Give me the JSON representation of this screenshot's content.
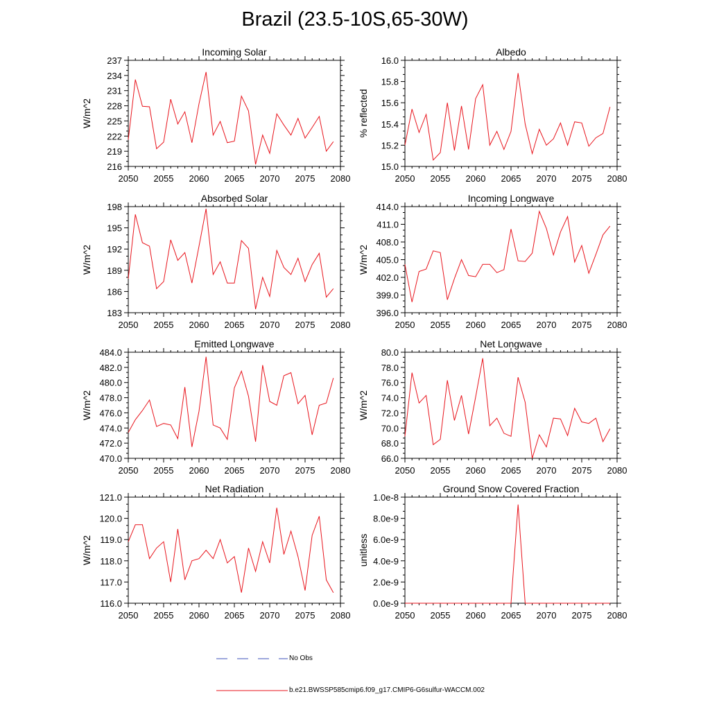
{
  "title": "Brazil (23.5-10S,65-30W)",
  "legend": {
    "obs_label": "No Obs",
    "obs_color": "#3b4fb8",
    "model_label": "b.e21.BWSSP585cmip6.f09_g17.CMIP6-G6sulfur-WACCM.002",
    "model_color": "#e8131b"
  },
  "chart_data": [
    {
      "type": "line",
      "title": "Incoming Solar",
      "ylabel": "W/m^2",
      "xlim": [
        2050,
        2080
      ],
      "ylim": [
        216,
        237
      ],
      "yticks": [
        "216",
        "219",
        "222",
        "225",
        "228",
        "231",
        "234",
        "237"
      ],
      "xticks": [
        "2050",
        "2055",
        "2060",
        "2065",
        "2070",
        "2075",
        "2080"
      ],
      "x": [
        2050,
        2051,
        2052,
        2053,
        2054,
        2055,
        2056,
        2057,
        2058,
        2059,
        2060,
        2061,
        2062,
        2063,
        2064,
        2065,
        2066,
        2067,
        2068,
        2069,
        2070,
        2071,
        2072,
        2073,
        2074,
        2075,
        2076,
        2077,
        2078,
        2079
      ],
      "series": [
        {
          "values": [
            221.3,
            233.2,
            227.9,
            227.8,
            219.5,
            220.8,
            229.3,
            224.4,
            226.8,
            220.7,
            228.4,
            234.7,
            222.2,
            224.9,
            220.7,
            221.0,
            229.9,
            227.0,
            216.4,
            222.2,
            218.6,
            226.4,
            224.2,
            222.2,
            225.5,
            221.6,
            223.7,
            225.9,
            219.0,
            220.9
          ]
        }
      ]
    },
    {
      "type": "line",
      "title": "Albedo",
      "ylabel": "% reflected",
      "xlim": [
        2050,
        2080
      ],
      "ylim": [
        15.0,
        16.0
      ],
      "yticks": [
        "15.0",
        "15.2",
        "15.4",
        "15.6",
        "15.8",
        "16.0"
      ],
      "xticks": [
        "2050",
        "2055",
        "2060",
        "2065",
        "2070",
        "2075",
        "2080"
      ],
      "x": [
        2050,
        2051,
        2052,
        2053,
        2054,
        2055,
        2056,
        2057,
        2058,
        2059,
        2060,
        2061,
        2062,
        2063,
        2064,
        2065,
        2066,
        2067,
        2068,
        2069,
        2070,
        2071,
        2072,
        2073,
        2074,
        2075,
        2076,
        2077,
        2078,
        2079
      ],
      "series": [
        {
          "values": [
            15.2,
            15.54,
            15.32,
            15.49,
            15.06,
            15.13,
            15.6,
            15.15,
            15.57,
            15.16,
            15.64,
            15.77,
            15.2,
            15.33,
            15.16,
            15.33,
            15.88,
            15.4,
            15.12,
            15.35,
            15.2,
            15.26,
            15.41,
            15.2,
            15.42,
            15.41,
            15.19,
            15.27,
            15.31,
            15.56
          ]
        }
      ]
    },
    {
      "type": "line",
      "title": "Absorbed Solar",
      "ylabel": "W/m^2",
      "xlim": [
        2050,
        2080
      ],
      "ylim": [
        183,
        198
      ],
      "yticks": [
        "183",
        "186",
        "189",
        "192",
        "195",
        "198"
      ],
      "xticks": [
        "2050",
        "2055",
        "2060",
        "2065",
        "2070",
        "2075",
        "2080"
      ],
      "x": [
        2050,
        2051,
        2052,
        2053,
        2054,
        2055,
        2056,
        2057,
        2058,
        2059,
        2060,
        2061,
        2062,
        2063,
        2064,
        2065,
        2066,
        2067,
        2068,
        2069,
        2070,
        2071,
        2072,
        2073,
        2074,
        2075,
        2076,
        2077,
        2078,
        2079
      ],
      "series": [
        {
          "values": [
            187.8,
            196.9,
            192.9,
            192.4,
            186.4,
            187.4,
            193.3,
            190.4,
            191.5,
            187.2,
            192.4,
            197.7,
            188.4,
            190.2,
            187.2,
            187.2,
            193.2,
            192.1,
            183.5,
            188.0,
            185.3,
            191.8,
            189.4,
            188.4,
            190.7,
            187.4,
            189.8,
            191.4,
            185.2,
            186.4
          ]
        }
      ]
    },
    {
      "type": "line",
      "title": "Incoming Longwave",
      "ylabel": "W/m^2",
      "xlim": [
        2050,
        2080
      ],
      "ylim": [
        396.0,
        414.0
      ],
      "yticks": [
        "396.0",
        "399.0",
        "402.0",
        "405.0",
        "408.0",
        "411.0",
        "414.0"
      ],
      "xticks": [
        "2050",
        "2055",
        "2060",
        "2065",
        "2070",
        "2075",
        "2080"
      ],
      "x": [
        2050,
        2051,
        2052,
        2053,
        2054,
        2055,
        2056,
        2057,
        2058,
        2059,
        2060,
        2061,
        2062,
        2063,
        2064,
        2065,
        2066,
        2067,
        2068,
        2069,
        2070,
        2071,
        2072,
        2073,
        2074,
        2075,
        2076,
        2077,
        2078,
        2079
      ],
      "series": [
        {
          "values": [
            404.2,
            397.8,
            403.0,
            403.4,
            406.5,
            406.2,
            398.2,
            401.8,
            405.0,
            402.3,
            402.1,
            404.2,
            404.2,
            402.8,
            403.3,
            410.2,
            404.8,
            404.7,
            406.1,
            413.2,
            410.3,
            405.8,
            409.7,
            412.3,
            404.6,
            407.4,
            402.7,
            405.9,
            409.2,
            410.7
          ]
        }
      ]
    },
    {
      "type": "line",
      "title": "Emitted Longwave",
      "ylabel": "W/m^2",
      "xlim": [
        2050,
        2080
      ],
      "ylim": [
        470.0,
        484.0
      ],
      "yticks": [
        "470.0",
        "472.0",
        "474.0",
        "476.0",
        "478.0",
        "480.0",
        "482.0",
        "484.0"
      ],
      "xticks": [
        "2050",
        "2055",
        "2060",
        "2065",
        "2070",
        "2075",
        "2080"
      ],
      "x": [
        2050,
        2051,
        2052,
        2053,
        2054,
        2055,
        2056,
        2057,
        2058,
        2059,
        2060,
        2061,
        2062,
        2063,
        2064,
        2065,
        2066,
        2067,
        2068,
        2069,
        2070,
        2071,
        2072,
        2073,
        2074,
        2075,
        2076,
        2077,
        2078,
        2079
      ],
      "series": [
        {
          "values": [
            473.4,
            475.1,
            476.3,
            477.7,
            474.2,
            474.6,
            474.4,
            472.6,
            479.4,
            471.5,
            476.2,
            483.4,
            474.4,
            474.0,
            472.5,
            479.3,
            481.5,
            478.2,
            472.2,
            482.3,
            477.5,
            477.0,
            480.9,
            481.3,
            477.2,
            478.3,
            473.1,
            477.0,
            477.3,
            480.6
          ]
        }
      ]
    },
    {
      "type": "line",
      "title": "Net Longwave",
      "ylabel": "W/m^2",
      "xlim": [
        2050,
        2080
      ],
      "ylim": [
        66.0,
        80.0
      ],
      "yticks": [
        "66.0",
        "68.0",
        "70.0",
        "72.0",
        "74.0",
        "76.0",
        "78.0",
        "80.0"
      ],
      "xticks": [
        "2050",
        "2055",
        "2060",
        "2065",
        "2070",
        "2075",
        "2080"
      ],
      "x": [
        2050,
        2051,
        2052,
        2053,
        2054,
        2055,
        2056,
        2057,
        2058,
        2059,
        2060,
        2061,
        2062,
        2063,
        2064,
        2065,
        2066,
        2067,
        2068,
        2069,
        2070,
        2071,
        2072,
        2073,
        2074,
        2075,
        2076,
        2077,
        2078,
        2079
      ],
      "series": [
        {
          "values": [
            68.9,
            77.3,
            73.3,
            74.3,
            67.8,
            68.5,
            76.3,
            71.0,
            74.3,
            69.2,
            74.1,
            79.2,
            70.3,
            71.3,
            69.3,
            68.9,
            76.7,
            73.4,
            66.0,
            69.1,
            67.5,
            71.3,
            71.2,
            69.0,
            72.6,
            70.8,
            70.6,
            71.3,
            68.2,
            69.9
          ]
        }
      ]
    },
    {
      "type": "line",
      "title": "Net Radiation",
      "ylabel": "W/m^2",
      "xlim": [
        2050,
        2080
      ],
      "ylim": [
        116.0,
        121.0
      ],
      "yticks": [
        "116.0",
        "117.0",
        "118.0",
        "119.0",
        "120.0",
        "121.0"
      ],
      "xticks": [
        "2050",
        "2055",
        "2060",
        "2065",
        "2070",
        "2075",
        "2080"
      ],
      "x": [
        2050,
        2051,
        2052,
        2053,
        2054,
        2055,
        2056,
        2057,
        2058,
        2059,
        2060,
        2061,
        2062,
        2063,
        2064,
        2065,
        2066,
        2067,
        2068,
        2069,
        2070,
        2071,
        2072,
        2073,
        2074,
        2075,
        2076,
        2077,
        2078,
        2079
      ],
      "series": [
        {
          "values": [
            118.9,
            119.7,
            119.7,
            118.1,
            118.6,
            118.9,
            117.0,
            119.5,
            117.1,
            118.0,
            118.1,
            118.5,
            118.1,
            119.0,
            117.9,
            118.2,
            116.5,
            118.6,
            117.5,
            118.9,
            117.9,
            120.5,
            118.3,
            119.4,
            118.2,
            116.6,
            119.2,
            120.1,
            117.1,
            116.5
          ]
        }
      ]
    },
    {
      "type": "line",
      "title": "Ground Snow Covered Fraction",
      "ylabel": "unitless",
      "xlim": [
        2050,
        2080
      ],
      "ylim": [
        0,
        1e-08
      ],
      "yticks": [
        "0.0e-9",
        "2.0e-9",
        "4.0e-9",
        "6.0e-9",
        "8.0e-9",
        "1.0e-8"
      ],
      "xticks": [
        "2050",
        "2055",
        "2060",
        "2065",
        "2070",
        "2075",
        "2080"
      ],
      "x": [
        2050,
        2051,
        2052,
        2053,
        2054,
        2055,
        2056,
        2057,
        2058,
        2059,
        2060,
        2061,
        2062,
        2063,
        2064,
        2065,
        2066,
        2067,
        2068,
        2069,
        2070,
        2071,
        2072,
        2073,
        2074,
        2075,
        2076,
        2077,
        2078,
        2079
      ],
      "series": [
        {
          "values": [
            0,
            0,
            0,
            0,
            0,
            0,
            0,
            0,
            0,
            0,
            0,
            0,
            0,
            0,
            0,
            0,
            9.3e-09,
            0,
            0,
            0,
            0,
            0,
            0,
            0,
            0,
            0,
            0,
            0,
            0,
            0
          ]
        }
      ]
    }
  ]
}
